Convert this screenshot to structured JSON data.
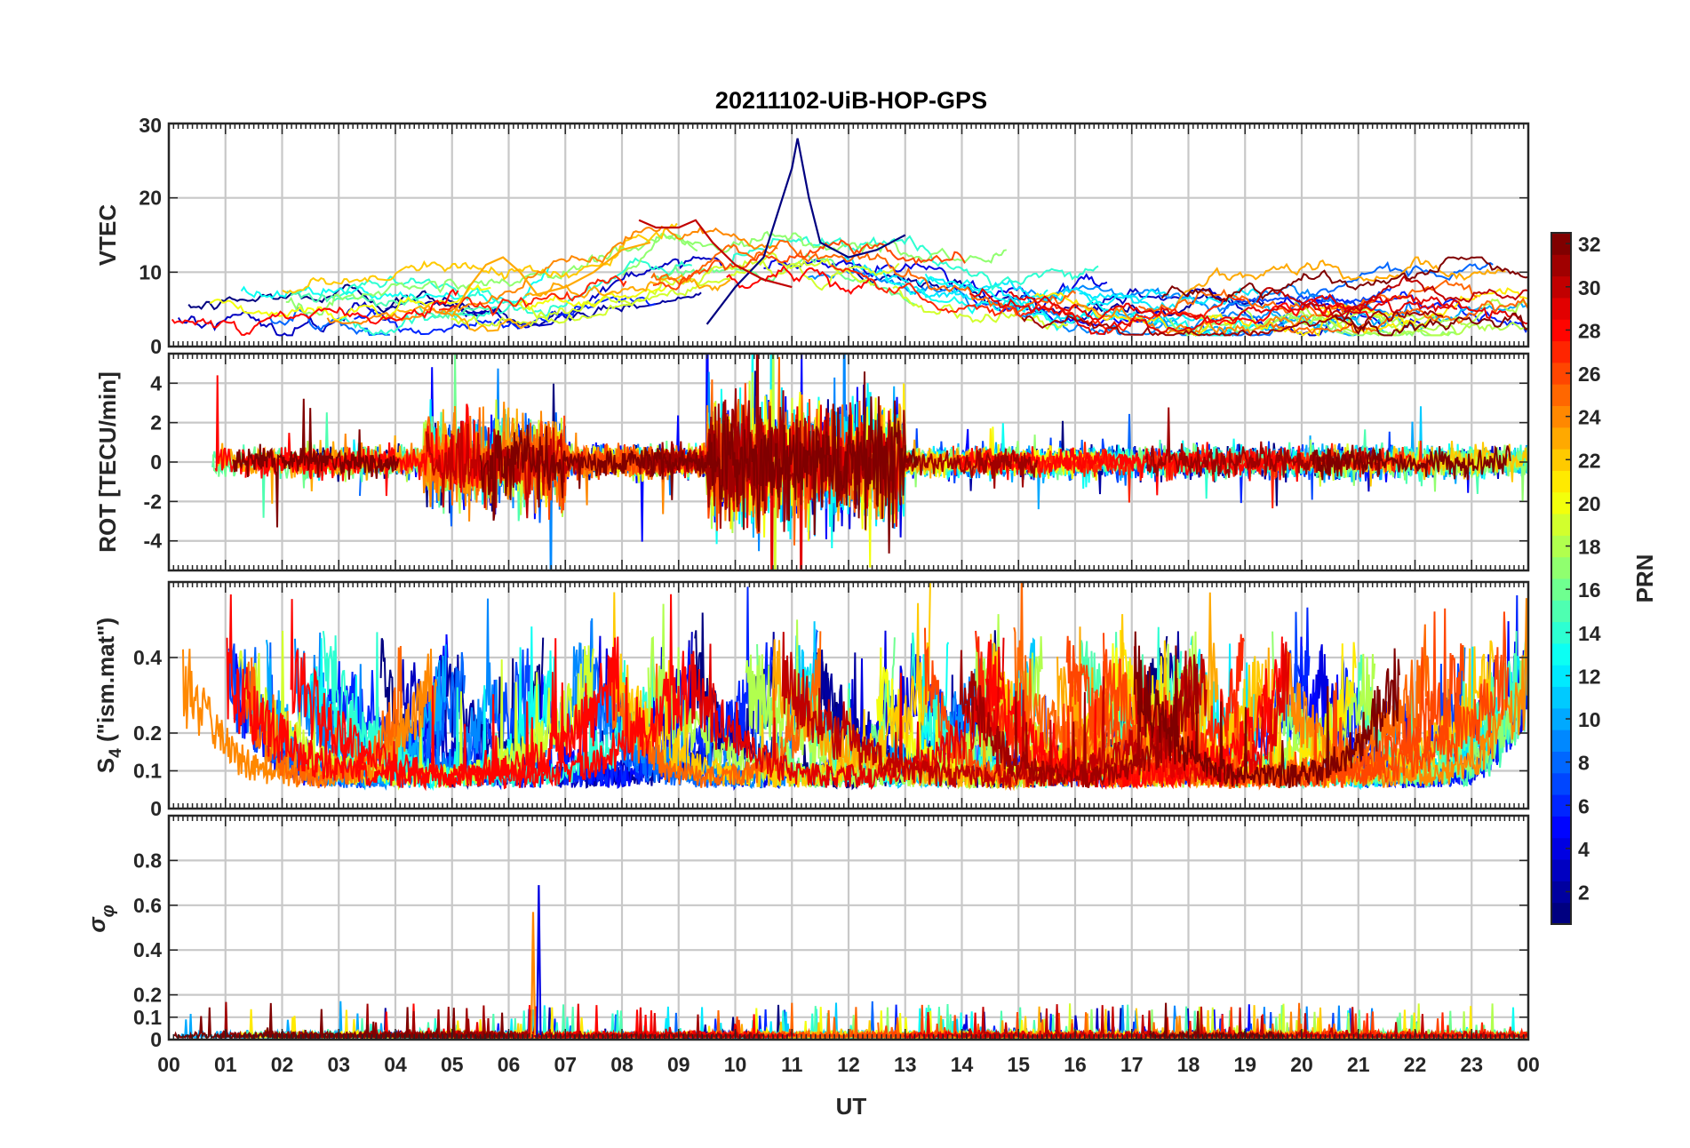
{
  "figure": {
    "title": "20211102-UiB-HOP-GPS",
    "xlabel": "UT",
    "colorbar_label": "PRN"
  },
  "chart_data": [
    {
      "type": "line",
      "panel": "vtec",
      "ylabel": "VTEC",
      "ylim": [
        0,
        30
      ],
      "yticks": [
        0,
        10,
        20,
        30
      ],
      "xlim": [
        0,
        24
      ],
      "grid": true,
      "series_color_by": "PRN",
      "series_highlights": [
        {
          "name": "PRN 1",
          "x": [
            9.5,
            10.0,
            10.5,
            11.0,
            11.1,
            11.3,
            11.5,
            12.0,
            12.5,
            13.0
          ],
          "y": [
            3,
            8,
            12,
            24,
            28,
            20,
            14,
            12,
            13,
            15
          ]
        },
        {
          "name": "PRN 23",
          "x": [
            5.0,
            5.3,
            5.6,
            5.9,
            6.2,
            6.5,
            7.0,
            7.5,
            8.0,
            8.5
          ],
          "y": [
            4,
            8,
            11,
            12,
            10,
            7,
            8,
            10,
            13,
            14
          ]
        },
        {
          "name": "PRN 30",
          "x": [
            8.3,
            8.6,
            9.0,
            9.3,
            9.6,
            10.0,
            10.5,
            11.0
          ],
          "y": [
            17,
            16,
            16,
            17,
            14,
            11,
            9,
            8
          ]
        }
      ]
    },
    {
      "type": "line",
      "panel": "rot",
      "ylabel": "ROT [TECU/min]",
      "ylim": [
        -5.5,
        5.5
      ],
      "yticks": [
        -4,
        -2,
        0,
        2,
        4
      ],
      "xlim": [
        0,
        24
      ],
      "grid": true,
      "series_color_by": "PRN"
    },
    {
      "type": "line",
      "panel": "s4",
      "ylabel": "S4 (\"ism.mat\")",
      "ylim": [
        0,
        0.6
      ],
      "yticks": [
        0,
        0.1,
        0.2,
        0.4
      ],
      "xlim": [
        0,
        24
      ],
      "grid": true,
      "series_color_by": "PRN"
    },
    {
      "type": "line",
      "panel": "sigma_phi",
      "ylabel": "σφ",
      "ylim": [
        0,
        1.0
      ],
      "yticks": [
        0,
        0.1,
        0.2,
        0.4,
        0.6,
        0.8
      ],
      "xlim": [
        0,
        24
      ],
      "grid": true,
      "series_color_by": "PRN",
      "series_highlights": [
        {
          "name": "PRN 24",
          "x": [
            6.4
          ],
          "y": [
            0.57
          ]
        },
        {
          "name": "PRN 4",
          "x": [
            6.5
          ],
          "y": [
            0.69
          ]
        }
      ]
    }
  ],
  "x_ticks": [
    "00",
    "01",
    "02",
    "03",
    "04",
    "05",
    "06",
    "07",
    "08",
    "09",
    "10",
    "11",
    "12",
    "13",
    "14",
    "15",
    "16",
    "17",
    "18",
    "19",
    "20",
    "21",
    "22",
    "23",
    "00"
  ],
  "colorbar": {
    "range": [
      1,
      32
    ],
    "ticks": [
      2,
      4,
      6,
      8,
      10,
      12,
      14,
      16,
      18,
      20,
      22,
      24,
      26,
      28,
      30,
      32
    ],
    "colormap": "jet"
  },
  "prn_count": 32
}
